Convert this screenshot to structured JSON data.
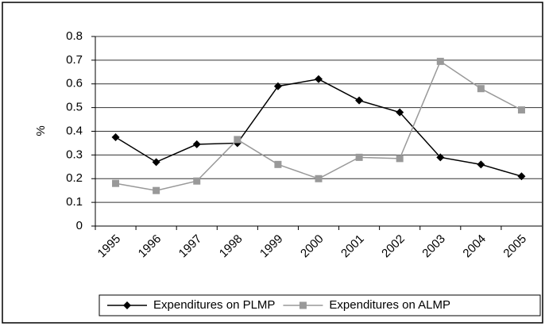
{
  "chart_data": {
    "type": "line",
    "y_label": "%",
    "categories": [
      "1995",
      "1996",
      "1997",
      "1998",
      "1999",
      "2000",
      "2001",
      "2002",
      "2003",
      "2004",
      "2005"
    ],
    "series": [
      {
        "name": "Expenditures on PLMP",
        "color": "#000000",
        "marker": "diamond",
        "values": [
          0.375,
          0.27,
          0.345,
          0.35,
          0.59,
          0.62,
          0.53,
          0.48,
          0.29,
          0.26,
          0.21
        ]
      },
      {
        "name": "Expenditures on ALMP",
        "color": "#999999",
        "marker": "square",
        "values": [
          0.18,
          0.15,
          0.19,
          0.365,
          0.26,
          0.2,
          0.29,
          0.285,
          0.695,
          0.58,
          0.49
        ]
      }
    ],
    "ylim": [
      0,
      0.8
    ],
    "yticks": [
      0,
      0.1,
      0.2,
      0.3,
      0.4,
      0.5,
      0.6,
      0.7,
      0.8
    ],
    "grid": true,
    "legend": "bottom"
  }
}
